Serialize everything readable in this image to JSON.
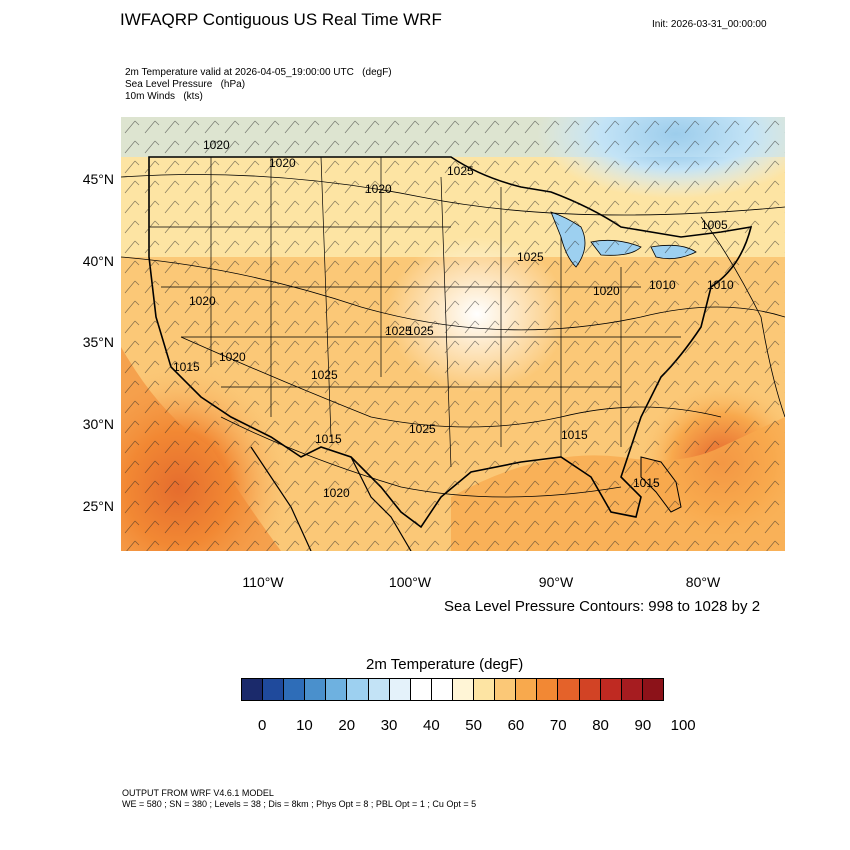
{
  "header": {
    "title": "IWFAQRP Contiguous US Real Time WRF",
    "init": "Init: 2026-03-31_00:00:00"
  },
  "fields": [
    "2m Temperature valid at 2026-04-05_19:00:00 UTC   (degF)",
    "Sea Level Pressure   (hPa)",
    "10m Winds   (kts)"
  ],
  "map": {
    "lat_labels": [
      "45°N",
      "40°N",
      "35°N",
      "30°N",
      "25°N"
    ],
    "lon_labels": [
      "110°W",
      "100°W",
      "90°W",
      "80°W"
    ],
    "pressure_labels": [
      "1020",
      "1020",
      "1020",
      "1025",
      "1025",
      "1025",
      "1020",
      "1010",
      "1010",
      "1005",
      "1020",
      "1025",
      "1015",
      "1020",
      "1015",
      "1025",
      "1015",
      "1015",
      "1020",
      "1025"
    ],
    "contour_note": "Sea Level Pressure Contours: 998 to 1028 by 2"
  },
  "colorbar": {
    "title": "2m Temperature  (degF)",
    "colors": [
      "#1b2a6b",
      "#1f4a9c",
      "#2e6db8",
      "#4a90cc",
      "#6eb1e0",
      "#9dd0f0",
      "#c3e3f6",
      "#e4f2fa",
      "#ffffff",
      "#ffffff",
      "#fff5d6",
      "#fde4a3",
      "#fbc877",
      "#f8a94d",
      "#f28834",
      "#e4622a",
      "#d24325",
      "#bf2a22",
      "#a61c20",
      "#8c1219"
    ],
    "tick_labels": [
      "0",
      "10",
      "20",
      "30",
      "40",
      "50",
      "60",
      "70",
      "80",
      "90",
      "100"
    ]
  },
  "footer": {
    "line1": "OUTPUT FROM WRF V4.6.1 MODEL",
    "line2": "WE = 580 ; SN = 380 ; Levels = 38 ; Dis = 8km ; Phys Opt = 8 ; PBL Opt = 1 ; Cu Opt = 5"
  }
}
